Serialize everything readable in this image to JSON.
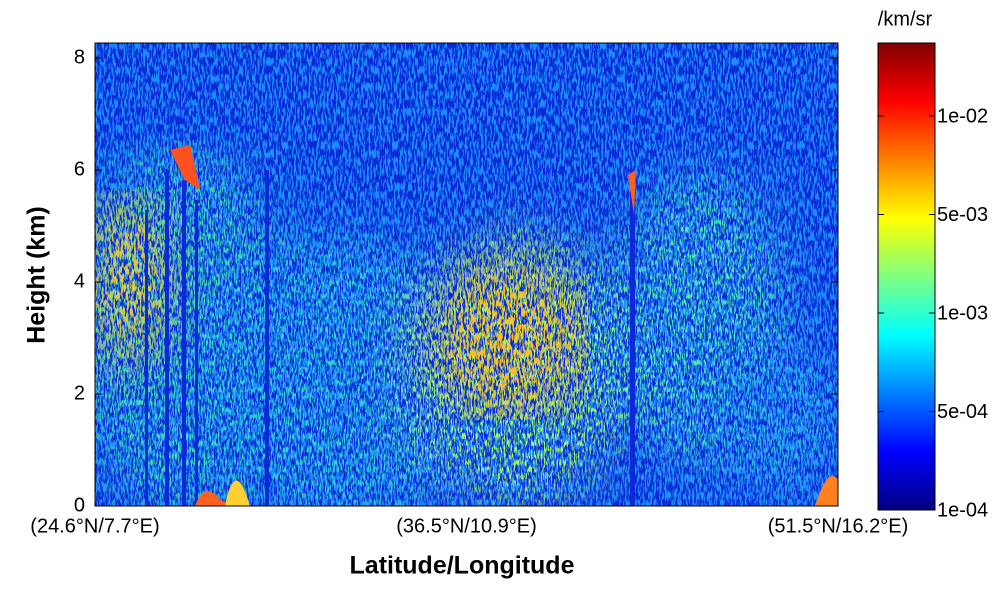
{
  "chart_data": {
    "type": "heatmap",
    "x_label": "Latitude/Longitude",
    "y_label": "Height (km)",
    "categories": [
      "(24.6°N/7.7°E)",
      "(36.5°N/10.9°E)",
      "(51.5°N/16.2°E)"
    ],
    "ylim": [
      0,
      8.27
    ],
    "yticks": [
      0,
      2,
      4,
      6,
      8
    ],
    "colorbar": {
      "title": "/km/sr",
      "colors": [
        "#00007f",
        "#0000ff",
        "#0080ff",
        "#00ffff",
        "#80ff80",
        "#ffff00",
        "#ff8000",
        "#ff0000",
        "#7f0000"
      ],
      "ticks": [
        {
          "value": 0.0001,
          "label": "1e-04"
        },
        {
          "value": 0.0005,
          "label": "5e-04"
        },
        {
          "value": 0.001,
          "label": "1e-03"
        },
        {
          "value": 0.005,
          "label": "5e-03"
        },
        {
          "value": 0.01,
          "label": "1e-02"
        }
      ]
    }
  }
}
